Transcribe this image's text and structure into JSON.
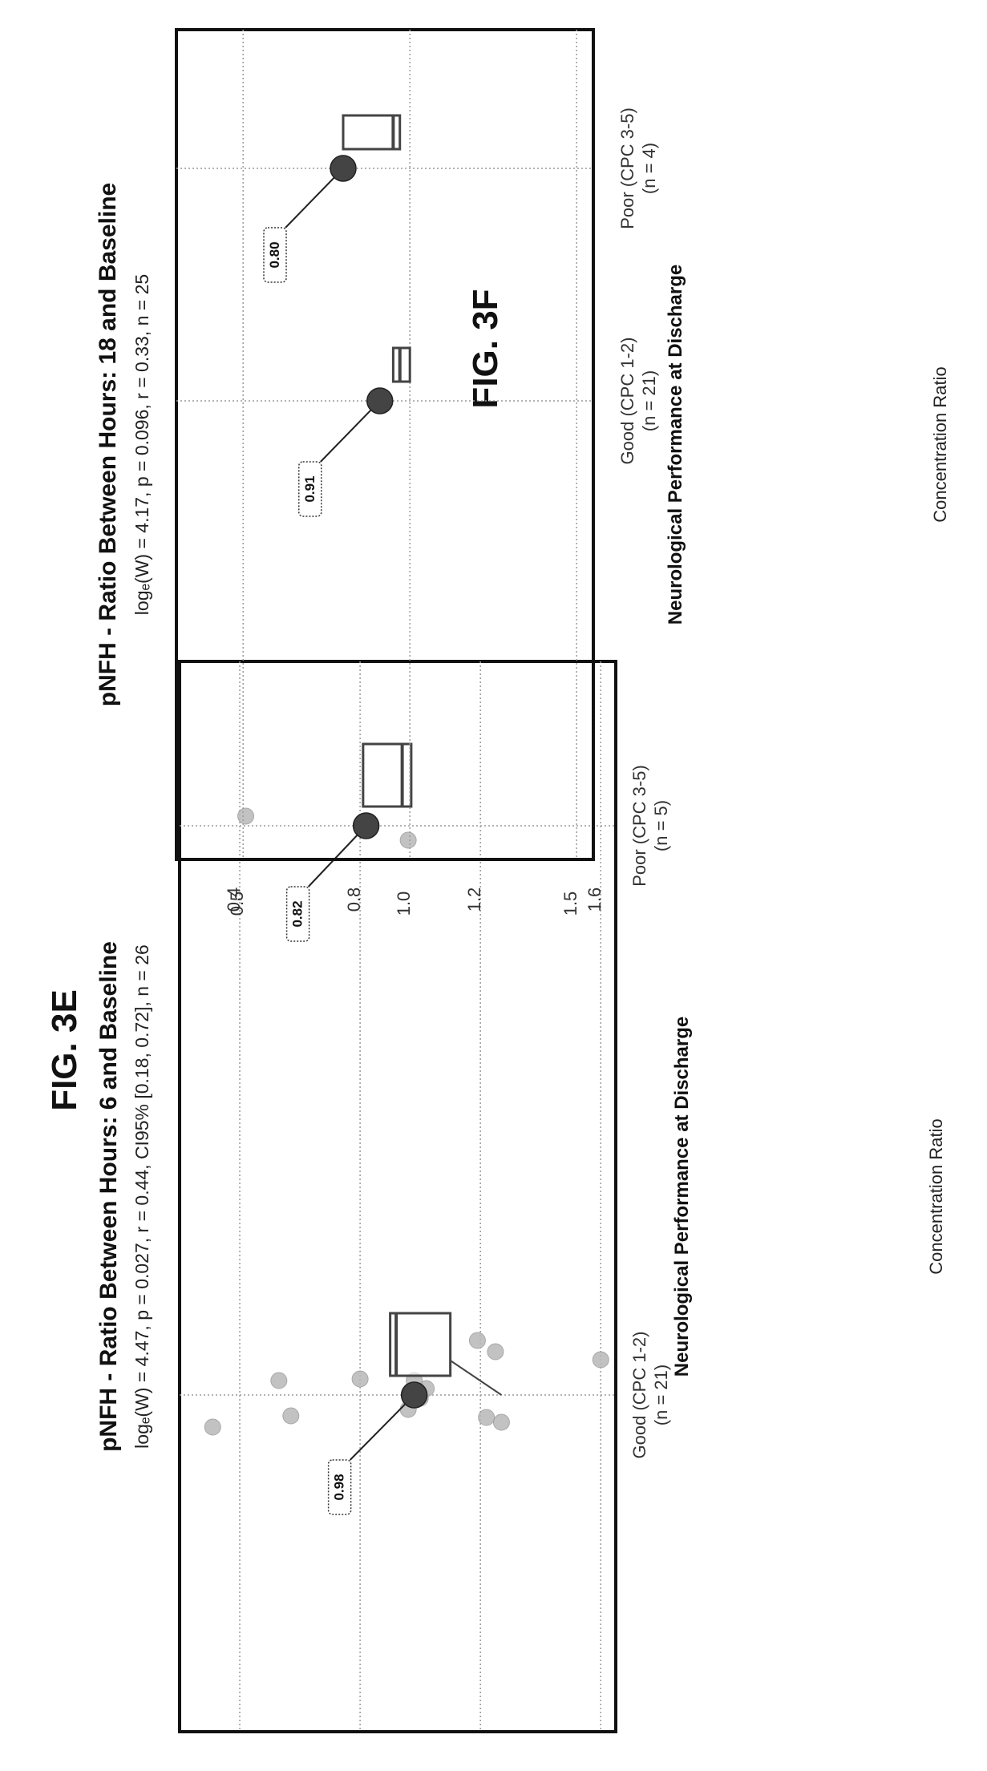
{
  "figure_labels": [
    "FIG. 3E",
    "FIG. 3F"
  ],
  "colors": {
    "frame": "#111111",
    "grid": "#9a9a9a",
    "box": "#444444",
    "point": "#444444",
    "jitter": "#b8b8b8"
  },
  "chart_data": [
    {
      "type": "box",
      "title": "pNFH - Ratio Between Hours: 6 and Baseline",
      "subtitle": "logₑ(W) = 4.47, p = 0.027, r = 0.44, CI95% [0.18, 0.72], n = 26",
      "xlabel": "Neurological Performance at Discharge",
      "ylabel": "Concentration Ratio",
      "ylim": [
        0.2,
        1.65
      ],
      "yticks": [
        0.4,
        0.8,
        1.2,
        1.6
      ],
      "ytick_labels": [
        "0.4",
        "0.8",
        "1.2",
        "1.6"
      ],
      "categories": [
        {
          "line1": "Good (CPC 1-2)",
          "line2": "(n = 21)"
        },
        {
          "line1": "Poor (CPC 3-5)",
          "line2": "(n = 5)"
        }
      ],
      "boxes": [
        {
          "q1": 0.9,
          "median": 0.92,
          "q3": 1.1,
          "whisker_high": 1.27,
          "center": 0.98,
          "label": "0.98"
        },
        {
          "q1": 0.81,
          "median": 0.94,
          "q3": 0.97,
          "whisker_high": null,
          "center": 0.82,
          "label": "0.82"
        }
      ],
      "points": [
        {
          "group": 0,
          "y": [
            1.6,
            1.27,
            1.25,
            1.22,
            1.19,
            1.02,
            1.0,
            0.98,
            0.96,
            0.8,
            0.57,
            0.53,
            0.31
          ]
        },
        {
          "group": 1,
          "y": [
            0.96,
            0.42
          ]
        }
      ]
    },
    {
      "type": "box",
      "title": "pNFH - Ratio Between Hours: 18 and Baseline",
      "subtitle": "logₑ(W) = 4.17, p = 0.096, r = 0.33, n = 25",
      "xlabel": "Neurological Performance at Discharge",
      "ylabel": "Concentration Ratio",
      "ylim": [
        0.3,
        1.55
      ],
      "yticks": [
        0.5,
        1.0,
        1.5
      ],
      "ytick_labels": [
        "0.5",
        "1.0",
        "1.5"
      ],
      "categories": [
        {
          "line1": "Good (CPC 1-2)",
          "line2": "(n = 21)"
        },
        {
          "line1": "Poor (CPC 3-5)",
          "line2": "(n = 4)"
        }
      ],
      "boxes": [
        {
          "q1": 0.95,
          "median": 0.97,
          "q3": 1.0,
          "whisker_high": null,
          "center": 0.91,
          "label": "0.91"
        },
        {
          "q1": 0.8,
          "median": 0.95,
          "q3": 0.97,
          "whisker_high": null,
          "center": 0.8,
          "label": "0.80"
        }
      ],
      "points": []
    }
  ]
}
